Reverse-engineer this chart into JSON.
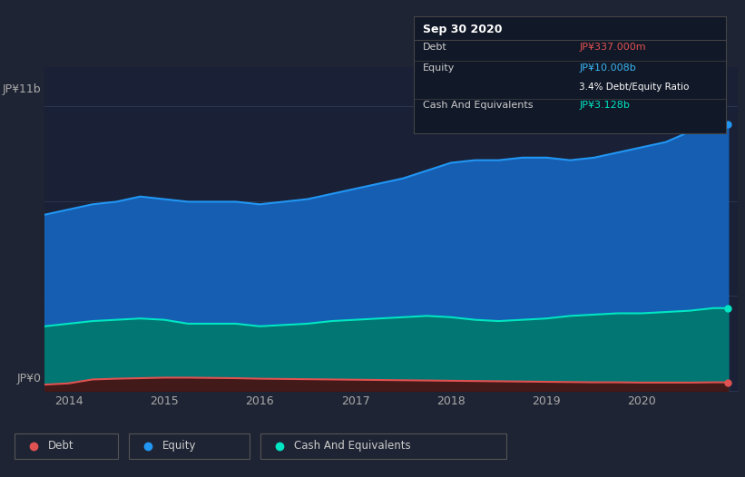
{
  "bg_color": "#1e2433",
  "plot_bg_color": "#1a2035",
  "grid_color": "#2a3550",
  "tooltip": {
    "title": "Sep 30 2020",
    "debt_label": "Debt",
    "debt_value": "JP¥337.000m",
    "equity_label": "Equity",
    "equity_value": "JP¥10.008b",
    "ratio_text": "3.4% Debt/Equity Ratio",
    "cash_label": "Cash And Equivalents",
    "cash_value": "JP¥3.128b",
    "debt_color": "#e05252",
    "equity_color": "#3ab4f2",
    "cash_color": "#00e5c3",
    "text_color": "#cccccc",
    "bg_color": "#111827",
    "border_color": "#444444"
  },
  "ylabel_top": "JP¥11b",
  "ylabel_bottom": "JP¥0",
  "equity_color": "#2196f3",
  "equity_fill": "#1565c0",
  "cash_color": "#00e5c3",
  "cash_fill": "#00796b",
  "debt_color": "#e05252",
  "debt_fill": "#4a1010",
  "years": [
    2013.75,
    2014.0,
    2014.25,
    2014.5,
    2014.75,
    2015.0,
    2015.25,
    2015.5,
    2015.75,
    2016.0,
    2016.25,
    2016.5,
    2016.75,
    2017.0,
    2017.25,
    2017.5,
    2017.75,
    2018.0,
    2018.25,
    2018.5,
    2018.75,
    2019.0,
    2019.25,
    2019.5,
    2019.75,
    2020.0,
    2020.25,
    2020.5,
    2020.75,
    2020.9
  ],
  "equity_values": [
    6.8,
    7.0,
    7.2,
    7.3,
    7.5,
    7.4,
    7.3,
    7.3,
    7.3,
    7.2,
    7.3,
    7.4,
    7.6,
    7.8,
    8.0,
    8.2,
    8.5,
    8.8,
    8.9,
    8.9,
    9.0,
    9.0,
    8.9,
    9.0,
    9.2,
    9.4,
    9.6,
    10.0,
    10.2,
    10.3
  ],
  "cash_values": [
    2.5,
    2.6,
    2.7,
    2.75,
    2.8,
    2.75,
    2.6,
    2.6,
    2.6,
    2.5,
    2.55,
    2.6,
    2.7,
    2.75,
    2.8,
    2.85,
    2.9,
    2.85,
    2.75,
    2.7,
    2.75,
    2.8,
    2.9,
    2.95,
    3.0,
    3.0,
    3.05,
    3.1,
    3.2,
    3.2
  ],
  "debt_values": [
    0.25,
    0.3,
    0.45,
    0.48,
    0.5,
    0.52,
    0.52,
    0.51,
    0.5,
    0.48,
    0.47,
    0.46,
    0.45,
    0.44,
    0.43,
    0.42,
    0.41,
    0.4,
    0.39,
    0.38,
    0.37,
    0.36,
    0.35,
    0.34,
    0.34,
    0.33,
    0.33,
    0.33,
    0.34,
    0.34
  ],
  "xticks": [
    2014,
    2015,
    2016,
    2017,
    2018,
    2019,
    2020
  ],
  "ylim": [
    0,
    12.5
  ],
  "xlim": [
    2013.75,
    2021.0
  ],
  "legend_items": [
    "Debt",
    "Equity",
    "Cash And Equivalents"
  ],
  "legend_colors": [
    "#e05252",
    "#2196f3",
    "#00e5c3"
  ]
}
